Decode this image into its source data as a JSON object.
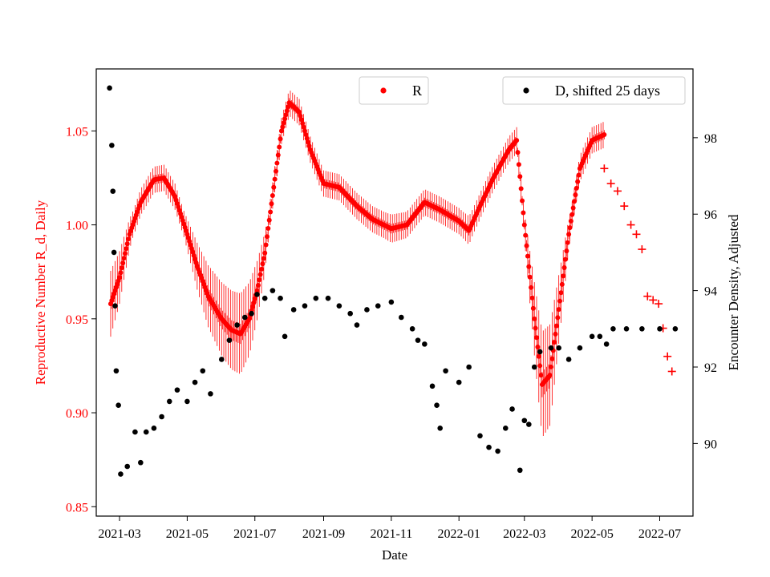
{
  "chart_data": {
    "type": "scatter",
    "title": "",
    "xlabel": "Date",
    "ylabel_left": "Reproductive Number R_d, Daily",
    "ylabel_right": "Encounter Density, Adjusted",
    "x_ticks": [
      "2021-03",
      "2021-05",
      "2021-07",
      "2021-09",
      "2021-11",
      "2022-01",
      "2022-03",
      "2022-05",
      "2022-07"
    ],
    "y_left_ticks": [
      "0.85",
      "0.90",
      "0.95",
      "1.00",
      "1.05"
    ],
    "y_right_ticks": [
      "90",
      "92",
      "94",
      "96",
      "98"
    ],
    "xlim": [
      "2021-02-08",
      "2022-07-31"
    ],
    "ylim_left": [
      0.845,
      1.083
    ],
    "ylim_right": [
      88.1,
      99.8
    ],
    "colors": {
      "R": "#ff0000",
      "D": "#000000",
      "forecast": "#ff0000"
    },
    "legend": [
      {
        "label": "R",
        "color": "#ff0000",
        "position": "top-center"
      },
      {
        "label": "D, shifted 25 days",
        "color": "#000000",
        "position": "top-right"
      }
    ],
    "series": [
      {
        "name": "R",
        "axis": "left",
        "marker": "circle",
        "points": [
          [
            "2021-02-21",
            0.958
          ],
          [
            "2021-03-01",
            0.972
          ],
          [
            "2021-03-10",
            0.995
          ],
          [
            "2021-03-20",
            1.012
          ],
          [
            "2021-04-01",
            1.024
          ],
          [
            "2021-04-10",
            1.025
          ],
          [
            "2021-04-20",
            1.015
          ],
          [
            "2021-05-01",
            0.995
          ],
          [
            "2021-05-10",
            0.978
          ],
          [
            "2021-05-20",
            0.962
          ],
          [
            "2021-06-01",
            0.95
          ],
          [
            "2021-06-10",
            0.944
          ],
          [
            "2021-06-18",
            0.942
          ],
          [
            "2021-06-26",
            0.95
          ],
          [
            "2021-07-03",
            0.965
          ],
          [
            "2021-07-10",
            0.985
          ],
          [
            "2021-07-18",
            1.02
          ],
          [
            "2021-07-25",
            1.05
          ],
          [
            "2021-08-01",
            1.065
          ],
          [
            "2021-08-10",
            1.06
          ],
          [
            "2021-08-20",
            1.04
          ],
          [
            "2021-09-01",
            1.022
          ],
          [
            "2021-09-15",
            1.02
          ],
          [
            "2021-10-01",
            1.01
          ],
          [
            "2021-10-15",
            1.003
          ],
          [
            "2021-11-01",
            0.998
          ],
          [
            "2021-11-15",
            1.0
          ],
          [
            "2021-12-01",
            1.012
          ],
          [
            "2021-12-15",
            1.008
          ],
          [
            "2022-01-01",
            1.002
          ],
          [
            "2022-01-10",
            0.997
          ],
          [
            "2022-01-20",
            1.01
          ],
          [
            "2022-02-01",
            1.025
          ],
          [
            "2022-02-15",
            1.04
          ],
          [
            "2022-02-22",
            1.045
          ],
          [
            "2022-03-01",
            1.0
          ],
          [
            "2022-03-10",
            0.95
          ],
          [
            "2022-03-17",
            0.915
          ],
          [
            "2022-03-24",
            0.92
          ],
          [
            "2022-04-01",
            0.955
          ],
          [
            "2022-04-10",
            0.995
          ],
          [
            "2022-04-20",
            1.03
          ],
          [
            "2022-05-01",
            1.045
          ],
          [
            "2022-05-12",
            1.048
          ]
        ]
      },
      {
        "name": "R forecast",
        "axis": "left",
        "marker": "plus",
        "points": [
          [
            "2022-05-12",
            1.03
          ],
          [
            "2022-05-18",
            1.022
          ],
          [
            "2022-05-24",
            1.018
          ],
          [
            "2022-05-30",
            1.01
          ],
          [
            "2022-06-05",
            1.0
          ],
          [
            "2022-06-10",
            0.995
          ],
          [
            "2022-06-15",
            0.987
          ],
          [
            "2022-06-20",
            0.962
          ],
          [
            "2022-06-25",
            0.96
          ],
          [
            "2022-06-30",
            0.958
          ],
          [
            "2022-07-04",
            0.945
          ],
          [
            "2022-07-08",
            0.93
          ],
          [
            "2022-07-12",
            0.922
          ]
        ]
      },
      {
        "name": "D, shifted 25 days",
        "axis": "right",
        "marker": "circle",
        "points": [
          [
            "2021-02-20",
            99.3
          ],
          [
            "2021-02-22",
            97.8
          ],
          [
            "2021-02-23",
            96.6
          ],
          [
            "2021-02-24",
            95.0
          ],
          [
            "2021-02-25",
            93.6
          ],
          [
            "2021-02-26",
            91.9
          ],
          [
            "2021-02-28",
            91.0
          ],
          [
            "2021-03-02",
            89.2
          ],
          [
            "2021-03-08",
            89.4
          ],
          [
            "2021-03-15",
            90.3
          ],
          [
            "2021-03-20",
            89.5
          ],
          [
            "2021-03-25",
            90.3
          ],
          [
            "2021-04-01",
            90.4
          ],
          [
            "2021-04-08",
            90.7
          ],
          [
            "2021-04-15",
            91.1
          ],
          [
            "2021-04-22",
            91.4
          ],
          [
            "2021-05-01",
            91.1
          ],
          [
            "2021-05-08",
            91.6
          ],
          [
            "2021-05-15",
            91.9
          ],
          [
            "2021-05-22",
            91.3
          ],
          [
            "2021-06-01",
            92.2
          ],
          [
            "2021-06-08",
            92.7
          ],
          [
            "2021-06-15",
            93.1
          ],
          [
            "2021-06-22",
            93.3
          ],
          [
            "2021-06-28",
            93.4
          ],
          [
            "2021-07-03",
            93.9
          ],
          [
            "2021-07-10",
            93.8
          ],
          [
            "2021-07-17",
            94.0
          ],
          [
            "2021-07-24",
            93.8
          ],
          [
            "2021-07-28",
            92.8
          ],
          [
            "2021-08-05",
            93.5
          ],
          [
            "2021-08-15",
            93.6
          ],
          [
            "2021-08-25",
            93.8
          ],
          [
            "2021-09-05",
            93.8
          ],
          [
            "2021-09-15",
            93.6
          ],
          [
            "2021-09-25",
            93.4
          ],
          [
            "2021-10-01",
            93.1
          ],
          [
            "2021-10-10",
            93.5
          ],
          [
            "2021-10-20",
            93.6
          ],
          [
            "2021-11-01",
            93.7
          ],
          [
            "2021-11-10",
            93.3
          ],
          [
            "2021-11-20",
            93.0
          ],
          [
            "2021-11-25",
            92.7
          ],
          [
            "2021-12-01",
            92.6
          ],
          [
            "2021-12-08",
            91.5
          ],
          [
            "2021-12-12",
            91.0
          ],
          [
            "2021-12-15",
            90.4
          ],
          [
            "2021-12-20",
            91.9
          ],
          [
            "2022-01-01",
            91.6
          ],
          [
            "2022-01-10",
            92.0
          ],
          [
            "2022-01-20",
            90.2
          ],
          [
            "2022-01-28",
            89.9
          ],
          [
            "2022-02-05",
            89.8
          ],
          [
            "2022-02-12",
            90.4
          ],
          [
            "2022-02-18",
            90.9
          ],
          [
            "2022-02-25",
            89.3
          ],
          [
            "2022-03-01",
            90.6
          ],
          [
            "2022-03-05",
            90.5
          ],
          [
            "2022-03-10",
            92.0
          ],
          [
            "2022-03-15",
            92.4
          ],
          [
            "2022-03-25",
            92.5
          ],
          [
            "2022-04-01",
            92.5
          ],
          [
            "2022-04-10",
            92.2
          ],
          [
            "2022-04-20",
            92.5
          ],
          [
            "2022-05-01",
            92.8
          ],
          [
            "2022-05-08",
            92.8
          ],
          [
            "2022-05-14",
            92.6
          ],
          [
            "2022-05-20",
            93.0
          ],
          [
            "2022-06-01",
            93.0
          ],
          [
            "2022-06-15",
            93.0
          ],
          [
            "2022-07-01",
            93.0
          ],
          [
            "2022-07-15",
            93.0
          ]
        ]
      }
    ]
  }
}
